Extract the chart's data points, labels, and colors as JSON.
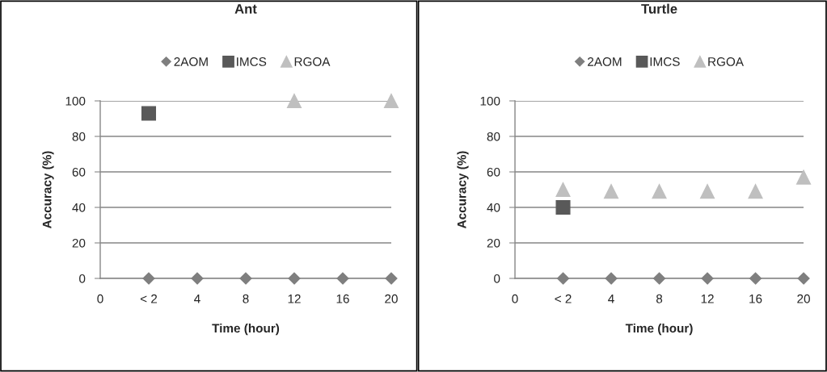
{
  "chart_data": [
    {
      "type": "scatter",
      "title": "Ant",
      "xlabel": "Time (hour)",
      "ylabel": "Accuracy (%)",
      "categories": [
        "0",
        "< 2",
        "4",
        "8",
        "12",
        "16",
        "20"
      ],
      "ylim": [
        0,
        100
      ],
      "yticks": [
        0,
        20,
        40,
        60,
        80,
        100
      ],
      "grid": "y",
      "legend": "top",
      "series": [
        {
          "name": "2AOM",
          "color": "#7f7f7f",
          "marker": "diamond",
          "values": [
            null,
            0,
            0,
            0,
            0,
            0,
            0
          ]
        },
        {
          "name": "IMCS",
          "color": "#595959",
          "marker": "square",
          "values": [
            null,
            93,
            null,
            null,
            null,
            null,
            null
          ]
        },
        {
          "name": "RGOA",
          "color": "#bfbfbf",
          "marker": "triangle",
          "values": [
            null,
            null,
            null,
            null,
            100,
            null,
            100
          ]
        }
      ]
    },
    {
      "type": "scatter",
      "title": "Turtle",
      "xlabel": "Time (hour)",
      "ylabel": "Accuracy (%)",
      "categories": [
        "0",
        "< 2",
        "4",
        "8",
        "12",
        "16",
        "20"
      ],
      "ylim": [
        0,
        100
      ],
      "yticks": [
        0,
        20,
        40,
        60,
        80,
        100
      ],
      "grid": "y",
      "legend": "top",
      "series": [
        {
          "name": "2AOM",
          "color": "#7f7f7f",
          "marker": "diamond",
          "values": [
            null,
            0,
            0,
            0,
            0,
            0,
            0
          ]
        },
        {
          "name": "IMCS",
          "color": "#595959",
          "marker": "square",
          "values": [
            null,
            40,
            null,
            null,
            null,
            null,
            null
          ]
        },
        {
          "name": "RGOA",
          "color": "#bfbfbf",
          "marker": "triangle",
          "values": [
            null,
            50,
            49,
            49,
            49,
            49,
            57
          ]
        }
      ]
    }
  ]
}
